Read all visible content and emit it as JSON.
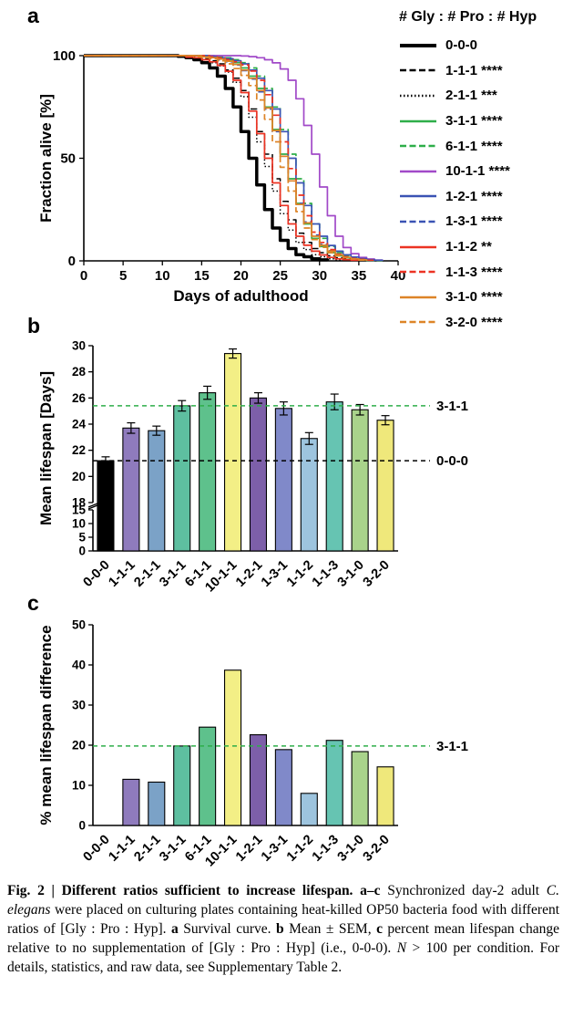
{
  "panels": {
    "a": {
      "label": "a",
      "legend_title": "# Gly : # Pro : # Hyp"
    },
    "b": {
      "label": "b"
    },
    "c": {
      "label": "c"
    }
  },
  "colors": {
    "line_black": "#000000",
    "line_green": "#2eae49",
    "line_purple": "#a149c8",
    "line_blue": "#3a53b4",
    "line_red": "#ec3323",
    "line_orange": "#dd8427",
    "ref_green": "#2eae49",
    "ref_black": "#000000"
  },
  "chart_data": [
    {
      "id": "a",
      "type": "line",
      "title": "Survival curve",
      "xlabel": "Days of adulthood",
      "ylabel": "Fraction alive [%]",
      "xlim": [
        0,
        40
      ],
      "ylim": [
        0,
        100
      ],
      "xticks": [
        0,
        5,
        10,
        15,
        20,
        25,
        30,
        35,
        40
      ],
      "yticks": [
        0,
        50,
        100
      ],
      "legend_position": "right",
      "grid": false,
      "series": [
        {
          "name": "0-0-0",
          "stars": "",
          "color": "#000000",
          "dash": "solid",
          "width": 3.5,
          "x": [
            0,
            12,
            13,
            14,
            15,
            16,
            17,
            18,
            19,
            20,
            21,
            22,
            23,
            24,
            25,
            26,
            27,
            28,
            29,
            30,
            31
          ],
          "y": [
            100,
            99.7,
            99,
            98,
            96.6,
            94,
            90,
            84,
            75,
            63,
            50,
            37,
            25,
            16,
            10,
            6,
            3,
            2,
            1,
            0.5,
            0
          ]
        },
        {
          "name": "1-1-1",
          "stars": "****",
          "color": "#000000",
          "dash": "dashed",
          "width": 1.5,
          "x": [
            0,
            14,
            15,
            16,
            17,
            18,
            19,
            20,
            21,
            22,
            23,
            24,
            25,
            26,
            27,
            28,
            29,
            30,
            31,
            32,
            33,
            34,
            35,
            36
          ],
          "y": [
            100,
            99,
            98.6,
            97.5,
            96,
            93,
            89,
            83,
            74,
            63,
            52,
            40,
            29,
            20,
            13.5,
            9,
            6,
            4,
            2.5,
            1.5,
            1,
            0.6,
            0.3,
            0
          ]
        },
        {
          "name": "2-1-1",
          "stars": "***",
          "color": "#000000",
          "dash": "dotted",
          "width": 1.5,
          "x": [
            0,
            14,
            15,
            16,
            17,
            18,
            19,
            20,
            21,
            22,
            23,
            24,
            25,
            26,
            27,
            28,
            29,
            30,
            31,
            32,
            33,
            34
          ],
          "y": [
            100,
            99,
            98,
            96.6,
            95,
            92,
            87,
            80,
            70,
            58,
            46,
            34,
            23,
            15,
            9,
            5.5,
            3,
            2,
            1,
            0.6,
            0.3,
            0
          ]
        },
        {
          "name": "3-1-1",
          "stars": "****",
          "color": "#2eae49",
          "dash": "solid",
          "width": 1.7,
          "x": [
            0,
            16,
            17,
            18,
            19,
            20,
            21,
            22,
            23,
            24,
            25,
            26,
            27,
            28,
            29,
            30,
            31,
            32,
            33,
            34,
            35,
            36,
            37
          ],
          "y": [
            100,
            99.5,
            99,
            98,
            96.6,
            94,
            90,
            84,
            75,
            64,
            52,
            40,
            28,
            18,
            11,
            7,
            4,
            2.5,
            1.5,
            1,
            0.5,
            0.2,
            0
          ]
        },
        {
          "name": "6-1-1",
          "stars": "****",
          "color": "#2eae49",
          "dash": "dashed",
          "width": 1.7,
          "x": [
            0,
            17,
            18,
            19,
            20,
            21,
            22,
            23,
            24,
            25,
            26,
            27,
            28,
            29,
            30,
            31,
            32,
            33,
            34,
            35,
            36,
            37,
            38
          ],
          "y": [
            100,
            99.5,
            99,
            98,
            96.6,
            94,
            90,
            84,
            75,
            64,
            52,
            40,
            28,
            18,
            11,
            7,
            4,
            2.5,
            1.5,
            1,
            0.5,
            0.2,
            0
          ]
        },
        {
          "name": "10-1-1",
          "stars": "****",
          "color": "#a149c8",
          "dash": "solid",
          "width": 1.7,
          "x": [
            0,
            20,
            21,
            22,
            23,
            24,
            25,
            26,
            27,
            28,
            29,
            30,
            31,
            32,
            33,
            34,
            35,
            36,
            37,
            38
          ],
          "y": [
            100,
            99.8,
            99.5,
            99,
            98,
            96.5,
            93.5,
            88,
            79,
            66,
            52,
            36,
            22,
            12,
            6.5,
            3.5,
            1.7,
            0.9,
            0.4,
            0
          ]
        },
        {
          "name": "1-2-1",
          "stars": "****",
          "color": "#3a53b4",
          "dash": "solid",
          "width": 1.7,
          "x": [
            0,
            16,
            17,
            18,
            19,
            20,
            21,
            22,
            23,
            24,
            25,
            26,
            27,
            28,
            29,
            30,
            31,
            32,
            33,
            34,
            35,
            36,
            37,
            38
          ],
          "y": [
            100,
            99.5,
            99,
            98.5,
            97.5,
            96,
            93,
            89,
            83,
            74,
            63,
            50,
            38,
            27,
            18,
            12,
            7.5,
            4.7,
            3,
            1.8,
            1.1,
            0.6,
            0.3,
            0
          ]
        },
        {
          "name": "1-3-1",
          "stars": "****",
          "color": "#3a53b4",
          "dash": "dashed",
          "width": 1.7,
          "x": [
            0,
            15,
            16,
            17,
            18,
            19,
            20,
            21,
            22,
            23,
            24,
            25,
            26,
            27,
            28,
            29,
            30,
            31,
            32,
            33,
            34,
            35,
            36,
            37
          ],
          "y": [
            100,
            99.4,
            99,
            98,
            97,
            95.4,
            92.7,
            88.6,
            82.4,
            74,
            63,
            51,
            39,
            28,
            19,
            12.6,
            8,
            5,
            3,
            1.9,
            1.1,
            0.6,
            0.3,
            0
          ]
        },
        {
          "name": "1-1-2",
          "stars": "**",
          "color": "#ec3323",
          "dash": "solid",
          "width": 1.7,
          "x": [
            0,
            13,
            14,
            15,
            16,
            17,
            18,
            19,
            20,
            21,
            22,
            23,
            24,
            25,
            26,
            27,
            28,
            29,
            30,
            31,
            32,
            33,
            34,
            35
          ],
          "y": [
            100,
            99.3,
            99,
            98,
            97,
            95.3,
            92.4,
            88,
            82,
            73,
            62,
            50,
            38,
            27,
            18,
            12,
            7.6,
            4.7,
            2.9,
            1.7,
            1,
            0.6,
            0.3,
            0
          ]
        },
        {
          "name": "1-1-3",
          "stars": "****",
          "color": "#ec3323",
          "dash": "dashed",
          "width": 1.7,
          "x": [
            0,
            16,
            17,
            18,
            19,
            20,
            21,
            22,
            23,
            24,
            25,
            26,
            27,
            28,
            29,
            30,
            31,
            32,
            33,
            34,
            35,
            36,
            37
          ],
          "y": [
            100,
            99.4,
            99,
            98,
            97,
            95.5,
            92.5,
            88,
            81,
            71,
            58,
            45,
            32,
            22,
            14,
            9,
            5.5,
            3.3,
            2,
            1.2,
            0.7,
            0.3,
            0
          ]
        },
        {
          "name": "3-1-0",
          "stars": "****",
          "color": "#dd8427",
          "dash": "solid",
          "width": 1.7,
          "x": [
            0,
            15,
            16,
            17,
            18,
            19,
            20,
            21,
            22,
            23,
            24,
            25,
            26,
            27,
            28,
            29,
            30,
            31,
            32,
            33,
            34,
            35,
            36
          ],
          "y": [
            100,
            99.4,
            99,
            98.3,
            97.3,
            95.7,
            93,
            89,
            83,
            74.5,
            63.5,
            51,
            39,
            27.5,
            18.5,
            12,
            7.6,
            4.7,
            2.9,
            1.7,
            1,
            0.5,
            0
          ]
        },
        {
          "name": "3-2-0",
          "stars": "****",
          "color": "#dd8427",
          "dash": "dashed",
          "width": 1.7,
          "x": [
            0,
            14,
            15,
            16,
            17,
            18,
            19,
            20,
            21,
            22,
            23,
            24,
            25,
            26,
            27,
            28,
            29,
            30,
            31,
            32,
            33,
            34,
            35,
            36
          ],
          "y": [
            100,
            99.5,
            99,
            98.5,
            97.5,
            96,
            93.7,
            90.4,
            85.4,
            78.4,
            69,
            58,
            45.6,
            34,
            24,
            16,
            10.4,
            6.6,
            4,
            2.5,
            1.5,
            0.9,
            0.4,
            0
          ]
        }
      ]
    },
    {
      "id": "b",
      "type": "bar",
      "ylabel": "Mean lifespan [Days]",
      "categories": [
        "0-0-0",
        "1-1-1",
        "2-1-1",
        "3-1-1",
        "6-1-1",
        "10-1-1",
        "1-2-1",
        "1-3-1",
        "1-1-2",
        "1-1-3",
        "3-1-0",
        "3-2-0"
      ],
      "values": [
        21.2,
        23.7,
        23.5,
        25.4,
        26.4,
        29.4,
        26.0,
        25.2,
        22.9,
        25.7,
        25.1,
        24.3
      ],
      "errors": [
        0.3,
        0.4,
        0.35,
        0.4,
        0.5,
        0.35,
        0.4,
        0.5,
        0.45,
        0.6,
        0.4,
        0.35
      ],
      "colors": [
        "#000000",
        "#8f7bbd",
        "#7ba2c7",
        "#5ebfa0",
        "#5ec18c",
        "#f3ef86",
        "#7d5fa9",
        "#8089c9",
        "#9dc4de",
        "#66c4b2",
        "#a9d38b",
        "#efe87b"
      ],
      "axis_break": {
        "lower": [
          0,
          15
        ],
        "lower_ticks": [
          0,
          5,
          10,
          15
        ],
        "upper": [
          18,
          30
        ],
        "upper_ticks": [
          18,
          20,
          22,
          24,
          26,
          28,
          30
        ]
      },
      "ref_lines": [
        {
          "value": 25.4,
          "color": "#2eae49",
          "label": "3-1-1"
        },
        {
          "value": 21.2,
          "color": "#000000",
          "label": "0-0-0"
        }
      ]
    },
    {
      "id": "c",
      "type": "bar",
      "ylabel": "% mean lifespan difference",
      "categories": [
        "0-0-0",
        "1-1-1",
        "2-1-1",
        "3-1-1",
        "6-1-1",
        "10-1-1",
        "1-2-1",
        "1-3-1",
        "1-1-2",
        "1-1-3",
        "3-1-0",
        "3-2-0"
      ],
      "values": [
        0,
        11.5,
        10.8,
        19.8,
        24.5,
        38.7,
        22.6,
        18.9,
        8.0,
        21.2,
        18.4,
        14.6
      ],
      "colors": [
        "#000000",
        "#8f7bbd",
        "#7ba2c7",
        "#5ebfa0",
        "#5ec18c",
        "#f3ef86",
        "#7d5fa9",
        "#8089c9",
        "#9dc4de",
        "#66c4b2",
        "#a9d38b",
        "#efe87b"
      ],
      "ylim": [
        0,
        50
      ],
      "yticks": [
        0,
        10,
        20,
        30,
        40,
        50
      ],
      "ref_lines": [
        {
          "value": 19.8,
          "color": "#2eae49",
          "label": "3-1-1"
        }
      ]
    }
  ],
  "caption": {
    "runs": [
      {
        "text": "Fig. 2 | Different ratios sufficient to increase lifespan. ",
        "bold": true
      },
      {
        "text": "a–c",
        "bold": true
      },
      {
        "text": " Synchronized day-2 adult "
      },
      {
        "text": "C. elegans",
        "italic": true
      },
      {
        "text": " were placed on culturing plates containing heat-killed OP50 bacteria food with different ratios of [Gly : Pro : Hyp]. "
      },
      {
        "text": "a",
        "bold": true
      },
      {
        "text": " Survival curve. "
      },
      {
        "text": "b",
        "bold": true
      },
      {
        "text": " Mean ± SEM, "
      },
      {
        "text": "c",
        "bold": true
      },
      {
        "text": " percent mean lifespan change relative to no supplementation of [Gly : Pro : Hyp] (i.e., 0-0-0). "
      },
      {
        "text": "N",
        "italic": true
      },
      {
        "text": " > 100 per condition. For details, statistics, and raw data, see Supplementary Table 2."
      }
    ]
  }
}
